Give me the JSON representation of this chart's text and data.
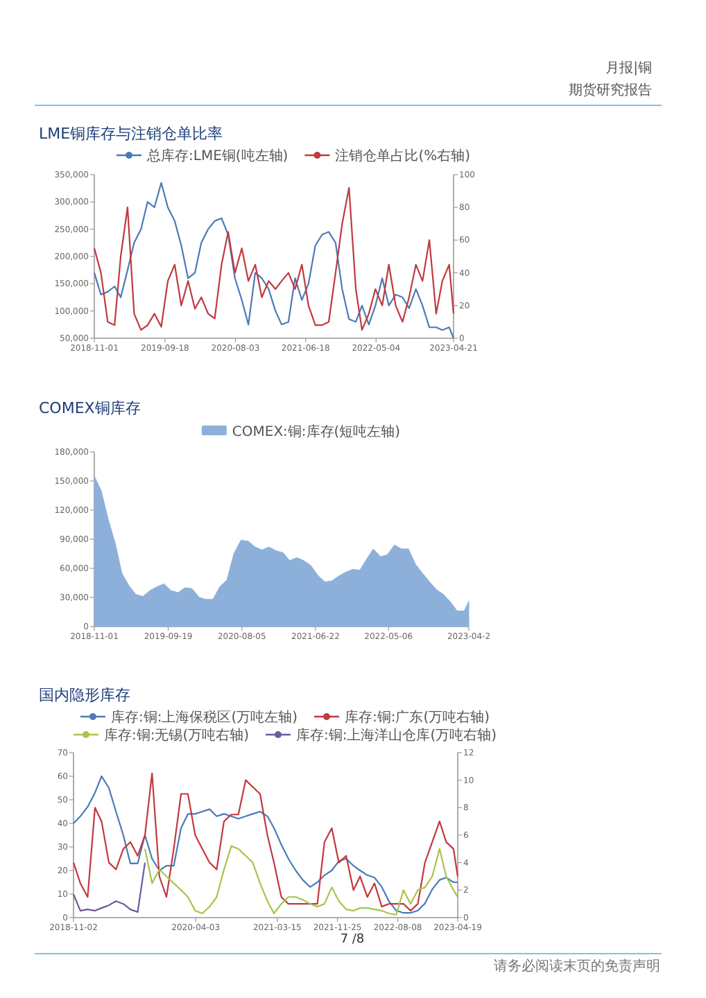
{
  "chart_data": [
    {
      "type": "line",
      "title": "LME铜库存与注销仓单比率",
      "legend": "top",
      "annotations": [
        "月报|铜",
        "期货研究报告"
      ],
      "x": [
        "2018-11",
        "2018-12",
        "2019-01",
        "2019-02",
        "2019-03",
        "2019-04",
        "2019-05",
        "2019-06",
        "2019-07",
        "2019-08",
        "2019-09",
        "2019-10",
        "2019-11",
        "2019-12",
        "2020-01",
        "2020-02",
        "2020-03",
        "2020-04",
        "2020-05",
        "2020-06",
        "2020-07",
        "2020-08",
        "2020-09",
        "2020-10",
        "2020-11",
        "2020-12",
        "2021-01",
        "2021-02",
        "2021-03",
        "2021-04",
        "2021-05",
        "2021-06",
        "2021-07",
        "2021-08",
        "2021-09",
        "2021-10",
        "2021-11",
        "2021-12",
        "2022-01",
        "2022-02",
        "2022-03",
        "2022-04",
        "2022-05",
        "2022-06",
        "2022-07",
        "2022-08",
        "2022-09",
        "2022-10",
        "2022-11",
        "2022-12",
        "2023-01",
        "2023-02",
        "2023-03",
        "2023-04",
        "2023-04-21"
      ],
      "xlim": [
        "2018-11-01",
        "2023-04-21"
      ],
      "xticks": [
        "2018-11-01",
        "2019-09-18",
        "2020-08-03",
        "2021-06-18",
        "2022-05-04",
        "2023-04-21"
      ],
      "ylim": [
        50000,
        350000
      ],
      "yticks": [
        {
          "value": 50000,
          "label": "50,000"
        },
        {
          "value": 100000,
          "label": "100,000"
        },
        {
          "value": 150000,
          "label": "150,000"
        },
        {
          "value": 200000,
          "label": "200,000"
        },
        {
          "value": 250000,
          "label": "250,000"
        },
        {
          "value": 300000,
          "label": "300,000"
        },
        {
          "value": 350000,
          "label": "350,000"
        }
      ],
      "y2lim": [
        0,
        100
      ],
      "y2ticks": [
        0,
        20,
        40,
        60,
        80,
        100
      ],
      "series": [
        {
          "name": "总库存:LME铜(吨左轴)",
          "color": "#4a7ab8",
          "values": [
            170000,
            130000,
            135000,
            145000,
            125000,
            175000,
            225000,
            250000,
            300000,
            290000,
            335000,
            290000,
            265000,
            220000,
            160000,
            170000,
            225000,
            250000,
            265000,
            270000,
            240000,
            160000,
            120000,
            75000,
            170000,
            160000,
            140000,
            100000,
            75000,
            80000,
            160000,
            120000,
            150000,
            220000,
            240000,
            245000,
            225000,
            140000,
            85000,
            80000,
            110000,
            75000,
            110000,
            160000,
            110000,
            130000,
            125000,
            105000,
            140000,
            110000,
            70000,
            70000,
            65000,
            70000,
            50000
          ]
        },
        {
          "name": "注销仓单占比(%右轴)",
          "color": "#c0393f",
          "axis": "y2",
          "values": [
            55,
            40,
            10,
            8,
            50,
            80,
            15,
            5,
            8,
            15,
            7,
            35,
            45,
            20,
            35,
            18,
            25,
            15,
            12,
            45,
            65,
            40,
            55,
            35,
            45,
            25,
            35,
            30,
            35,
            40,
            30,
            45,
            20,
            8,
            8,
            10,
            40,
            70,
            92,
            30,
            5,
            15,
            30,
            20,
            45,
            20,
            10,
            25,
            45,
            35,
            60,
            15,
            35,
            45,
            15
          ]
        }
      ]
    },
    {
      "type": "area",
      "title": "COMEX铜库存",
      "legend": "top",
      "x": [
        "2018-11",
        "2018-12",
        "2019-01",
        "2019-02",
        "2019-03",
        "2019-04",
        "2019-05",
        "2019-06",
        "2019-07",
        "2019-08",
        "2019-09",
        "2019-10",
        "2019-11",
        "2019-12",
        "2020-01",
        "2020-02",
        "2020-03",
        "2020-04",
        "2020-05",
        "2020-06",
        "2020-07",
        "2020-08",
        "2020-09",
        "2020-10",
        "2020-11",
        "2020-12",
        "2021-01",
        "2021-02",
        "2021-03",
        "2021-04",
        "2021-05",
        "2021-06",
        "2021-07",
        "2021-08",
        "2021-09",
        "2021-10",
        "2021-11",
        "2021-12",
        "2022-01",
        "2022-02",
        "2022-03",
        "2022-04",
        "2022-05",
        "2022-06",
        "2022-07",
        "2022-08",
        "2022-09",
        "2022-10",
        "2022-11",
        "2022-12",
        "2023-01",
        "2023-02",
        "2023-03",
        "2023-04",
        "2023-04-21"
      ],
      "xlim": [
        "2018-11-01",
        "2023-04-21"
      ],
      "xticks": [
        "2018-11-01",
        "2019-09-19",
        "2020-08-05",
        "2021-06-22",
        "2022-05-06",
        {
          "value": "2023-04-21",
          "label": "2023-04-2"
        }
      ],
      "ylim": [
        0,
        180000
      ],
      "yticks": [
        0,
        {
          "value": 30000,
          "label": "30,000"
        },
        {
          "value": 60000,
          "label": "60,000"
        },
        {
          "value": 90000,
          "label": "90,000"
        },
        {
          "value": 120000,
          "label": "120,000"
        },
        {
          "value": 150000,
          "label": "150,000"
        },
        {
          "value": 180000,
          "label": "180,000"
        }
      ],
      "series": [
        {
          "name": "COMEX:铜:库存(短吨左轴)",
          "color": "#8db0da",
          "values": [
            155000,
            140000,
            110000,
            85000,
            55000,
            42000,
            33000,
            31000,
            37000,
            41000,
            44000,
            37000,
            35000,
            40000,
            39000,
            30000,
            28000,
            28000,
            41000,
            48000,
            75000,
            89000,
            88000,
            82000,
            79000,
            82000,
            78000,
            76000,
            68000,
            71000,
            68000,
            63000,
            53000,
            46000,
            47000,
            52000,
            56000,
            59000,
            58000,
            70000,
            80000,
            72000,
            74000,
            84000,
            80000,
            80000,
            64000,
            55000,
            46000,
            38000,
            33000,
            25000,
            16000,
            16000,
            26000
          ]
        }
      ]
    },
    {
      "type": "line",
      "title": "国内隐形库存",
      "legend": "top",
      "annotations": [
        "7 /8",
        "请务必阅读末页的免责声明"
      ],
      "x": [
        "2018-11-02",
        "2018-12",
        "2019-01",
        "2019-02",
        "2019-03",
        "2019-04",
        "2019-05",
        "2019-06",
        "2019-07",
        "2019-08",
        "2019-09",
        "2019-10",
        "2019-11",
        "2019-12",
        "2020-01",
        "2020-02",
        "2020-03",
        "2020-04",
        "2020-05",
        "2020-06",
        "2020-07",
        "2020-08",
        "2020-09",
        "2020-10",
        "2020-11",
        "2020-12",
        "2021-01",
        "2021-02",
        "2021-03",
        "2021-04",
        "2021-05",
        "2021-06",
        "2021-07",
        "2021-08",
        "2021-09",
        "2021-10",
        "2021-11",
        "2021-12",
        "2022-01",
        "2022-02",
        "2022-03",
        "2022-04",
        "2022-05",
        "2022-06",
        "2022-07",
        "2022-08",
        "2022-09",
        "2022-10",
        "2022-11",
        "2022-12",
        "2023-01",
        "2023-02",
        "2023-03",
        "2023-04",
        "2023-04-19"
      ],
      "xlim": [
        "2018-11-02",
        "2023-04-19"
      ],
      "xticks": [
        "2018-11-02",
        "2020-04-03",
        "2021-03-15",
        "2021-11-25",
        "2022-08-08",
        "2023-04-19"
      ],
      "ylim": [
        0,
        70
      ],
      "yticks": [
        0,
        10,
        20,
        30,
        40,
        50,
        60,
        70
      ],
      "y2lim": [
        0,
        12
      ],
      "y2ticks": [
        0,
        2,
        4,
        6,
        8,
        10,
        12
      ],
      "series": [
        {
          "name": "库存:铜:上海保税区(万吨左轴)",
          "color": "#4a7ab8",
          "values": [
            40,
            43,
            47,
            53,
            60,
            55,
            45,
            35,
            23,
            23,
            35,
            25,
            20,
            22,
            22,
            38,
            44,
            44,
            45,
            46,
            43,
            44,
            43,
            42,
            43,
            44,
            45,
            43,
            38,
            31,
            25,
            20,
            16,
            13,
            15,
            18,
            20,
            24,
            25,
            22,
            20,
            18,
            17,
            13,
            7,
            3,
            2,
            2,
            3,
            6,
            12,
            16,
            17,
            15,
            15
          ]
        },
        {
          "name": "库存:铜:广东(万吨右轴)",
          "color": "#c0393f",
          "axis": "y2",
          "values": [
            4,
            2.5,
            1.5,
            8,
            7,
            4,
            3.5,
            5,
            5.5,
            4.5,
            6,
            10.5,
            3,
            1.5,
            5,
            9,
            9,
            6,
            5,
            4,
            3.5,
            7,
            7.5,
            7.5,
            10,
            9.5,
            9,
            6,
            4,
            1.5,
            1,
            1,
            1,
            1,
            1,
            5.5,
            6.5,
            4,
            4.5,
            2,
            3,
            1.5,
            2.5,
            0.8,
            1,
            1,
            1,
            0.5,
            1,
            4,
            5.5,
            7,
            5.5,
            5,
            3
          ]
        },
        {
          "name": "库存:铜:无锡(万吨右轴)",
          "color": "#a8c44a",
          "axis": "y2",
          "values": [
            null,
            null,
            null,
            null,
            null,
            null,
            null,
            null,
            null,
            null,
            5,
            2.5,
            3.5,
            3,
            2.5,
            2,
            1.5,
            0.5,
            0.3,
            0.8,
            1.5,
            3.5,
            5.2,
            5,
            4.5,
            4,
            2.5,
            1.2,
            0.3,
            1,
            1.5,
            1.5,
            1.3,
            1,
            0.8,
            1,
            2.2,
            1.2,
            0.6,
            0.5,
            0.7,
            0.7,
            0.6,
            0.5,
            0.3,
            0.2,
            2,
            1,
            2,
            2.2,
            3,
            5,
            3,
            2,
            1.5
          ]
        },
        {
          "name": "库存:铜:上海洋山仓库(万吨右轴)",
          "color": "#6a5a9e",
          "axis": "y2",
          "values": [
            1.7,
            0.5,
            0.6,
            0.5,
            0.7,
            0.9,
            1.2,
            1.0,
            0.6,
            0.4,
            4,
            null,
            null,
            null,
            null,
            null,
            null,
            null,
            null,
            null,
            null,
            null,
            null,
            null,
            null,
            null,
            null,
            null,
            null,
            null,
            null,
            null,
            null,
            null,
            null,
            null,
            null,
            null,
            null,
            null,
            null,
            null,
            null,
            null,
            null,
            null,
            null,
            null,
            null,
            null,
            null,
            null,
            null,
            null,
            null
          ]
        }
      ]
    }
  ]
}
